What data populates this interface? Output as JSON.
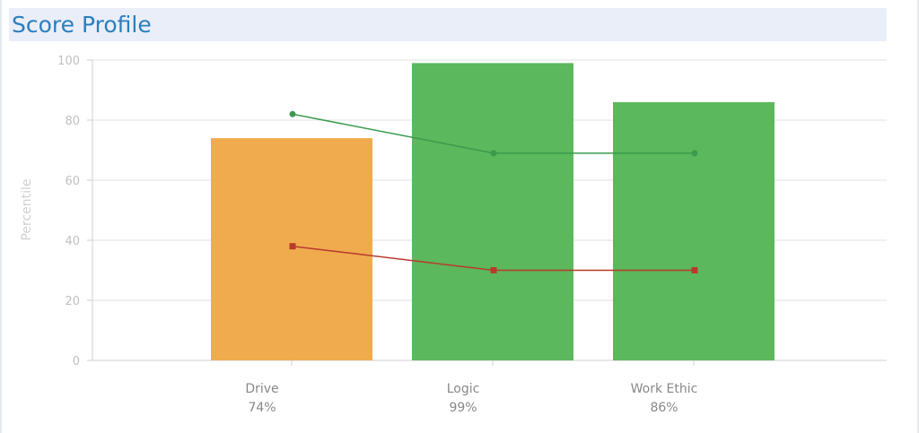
{
  "header": {
    "title": "Score Profile"
  },
  "chart_data": {
    "type": "bar",
    "title": "",
    "xlabel": "",
    "ylabel": "Percentile",
    "ylim": [
      0,
      100
    ],
    "yticks": [
      0,
      20,
      40,
      60,
      80,
      100
    ],
    "grid": true,
    "categories": [
      "Drive",
      "Logic",
      "Work Ethic"
    ],
    "category_sublabels": [
      "74%",
      "99%",
      "86%"
    ],
    "values": [
      74,
      99,
      86
    ],
    "bar_colors": [
      "#f0ab4e",
      "#5cb85c",
      "#5cb85c"
    ],
    "series": [
      {
        "kind": "line",
        "color": "#3a9a4e",
        "marker": "circle",
        "values": [
          82,
          69,
          69
        ]
      },
      {
        "kind": "line",
        "color": "#b83a2f",
        "marker": "square",
        "values": [
          38,
          30,
          30
        ]
      }
    ]
  }
}
